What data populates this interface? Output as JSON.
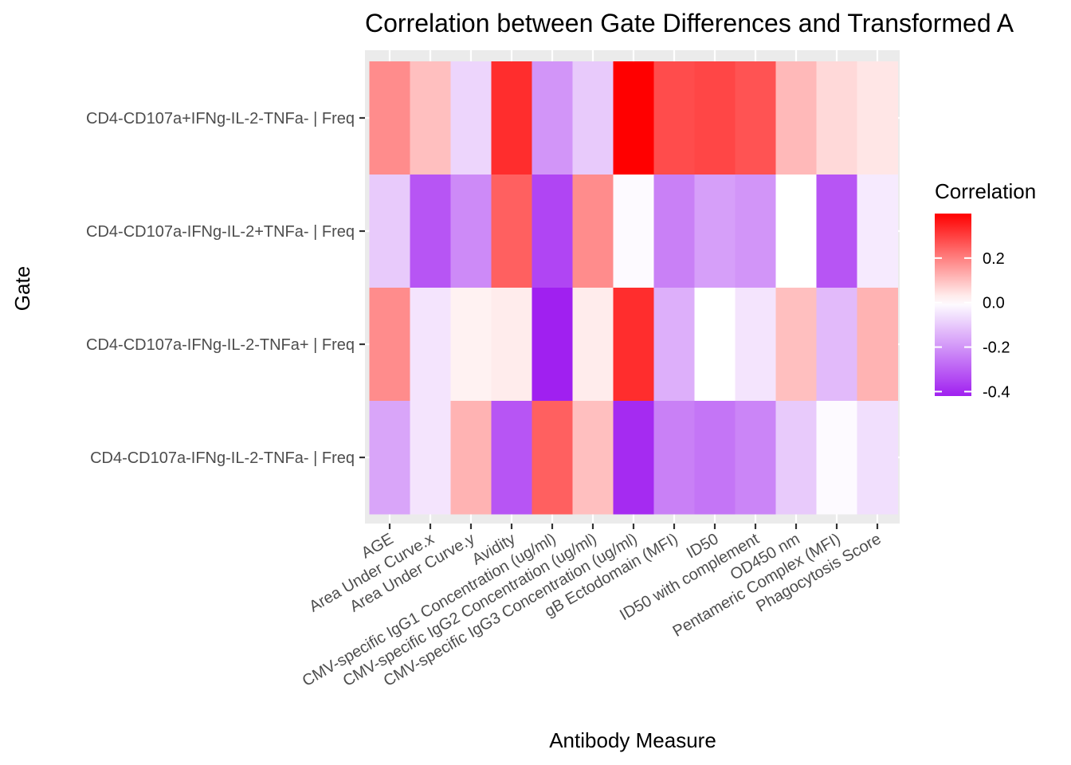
{
  "chart_data": {
    "type": "heatmap",
    "title": "Correlation between Gate Differences and Transformed A",
    "xlabel": "Antibody Measure",
    "ylabel": "Gate",
    "x_categories": [
      "AGE",
      "Area Under Curve.x",
      "Area Under Curve.y",
      "Avidity",
      "CMV-specific IgG1 Concentration (ug/ml)",
      "CMV-specific IgG2 Concentration (ug/ml)",
      "CMV-specific IgG3 Concentration (ug/ml)",
      "gB Ectodomain (MFI)",
      "ID50",
      "ID50 with complement",
      "OD450 nm",
      "Pentameric Complex (MFI)",
      "Phagocytosis Score"
    ],
    "y_categories": [
      "CD4-CD107a+IFNg-IL-2-TNFa- | Freq",
      "CD4-CD107a-IFNg-IL-2+TNFa- | Freq",
      "CD4-CD107a-IFNg-IL-2-TNFa+ | Freq",
      "CD4-CD107a-IFNg-IL-2-TNFa- | Freq"
    ],
    "values": [
      [
        0.18,
        0.1,
        -0.08,
        0.33,
        -0.2,
        -0.1,
        0.4,
        0.28,
        0.29,
        0.27,
        0.11,
        0.06,
        0.04
      ],
      [
        -0.1,
        -0.32,
        -0.22,
        0.25,
        -0.35,
        0.18,
        -0.01,
        -0.24,
        -0.18,
        -0.2,
        0.0,
        -0.32,
        -0.04
      ],
      [
        0.18,
        -0.05,
        0.02,
        0.03,
        -0.42,
        0.03,
        0.33,
        -0.15,
        0.0,
        -0.05,
        0.1,
        -0.13,
        0.12
      ],
      [
        -0.17,
        -0.05,
        0.12,
        -0.32,
        0.25,
        0.1,
        -0.4,
        -0.24,
        -0.26,
        -0.23,
        -0.1,
        -0.01,
        -0.06
      ]
    ],
    "color_scale": {
      "low": "#A020F0",
      "mid": "#FFFFFF",
      "high": "#FF0000",
      "midpoint": 0,
      "limits": [
        -0.42,
        0.4
      ]
    },
    "legend": {
      "title": "Correlation",
      "ticks": [
        "0.2",
        "0.0",
        "-0.2",
        "-0.4"
      ],
      "tick_values": [
        0.2,
        0.0,
        -0.2,
        -0.4
      ],
      "placement": "right"
    },
    "panel_background": "#EBEBEB",
    "grid": true
  }
}
